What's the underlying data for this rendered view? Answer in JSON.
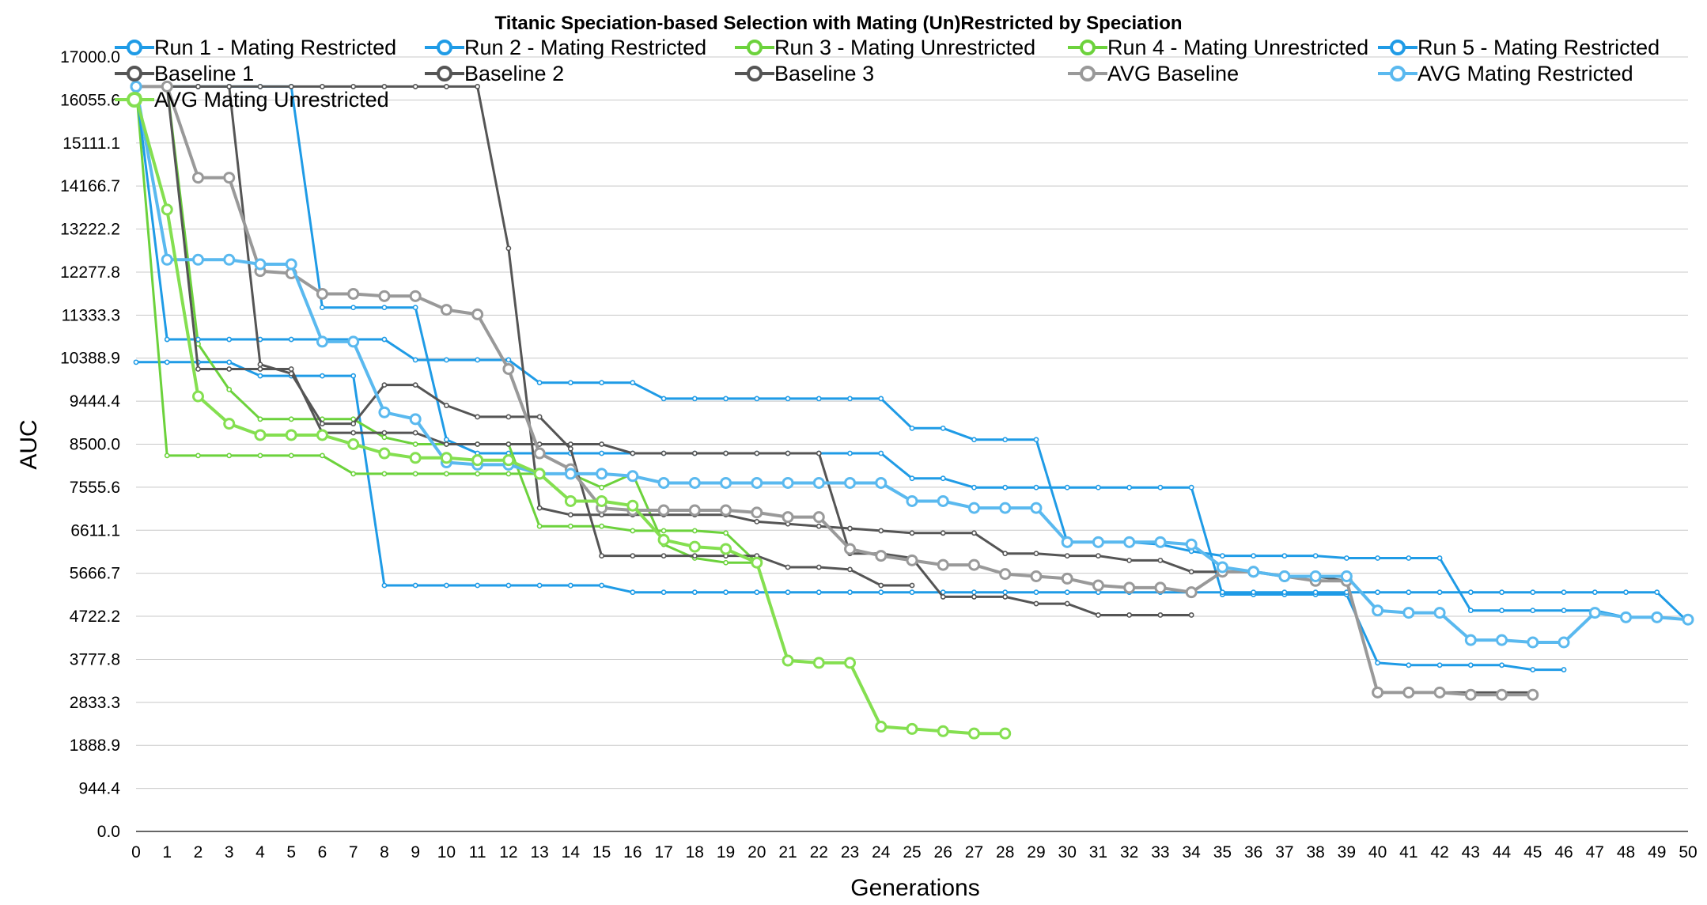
{
  "chart_data": {
    "type": "line",
    "title": "Titanic Speciation-based Selection with Mating (Un)Restricted by Speciation",
    "xlabel": "Generations",
    "ylabel": "AUC",
    "xlim": [
      0,
      50
    ],
    "ylim": [
      0,
      17000
    ],
    "x_ticks": [
      0,
      1,
      2,
      3,
      4,
      5,
      6,
      7,
      8,
      9,
      10,
      11,
      12,
      13,
      14,
      15,
      16,
      17,
      18,
      19,
      20,
      21,
      22,
      23,
      24,
      25,
      26,
      27,
      28,
      29,
      30,
      31,
      32,
      33,
      34,
      35,
      36,
      37,
      38,
      39,
      40,
      41,
      42,
      43,
      44,
      45,
      46,
      47,
      48,
      49,
      50
    ],
    "y_ticks": [
      "0.0",
      "944.4",
      "1888.9",
      "2833.3",
      "3777.8",
      "4722.2",
      "5666.7",
      "6611.1",
      "7555.6",
      "8500.0",
      "9444.4",
      "10388.9",
      "11333.3",
      "12277.8",
      "13222.2",
      "14166.7",
      "15111.1",
      "16055.6",
      "17000.0"
    ],
    "grid": "horizontal",
    "legend_position": "top",
    "series": [
      {
        "name": "Run 1 - Mating Restricted",
        "color": "#1f9be6",
        "width": 3,
        "marker": "small",
        "values": [
          16350,
          16350,
          16350,
          16350,
          16350,
          16350,
          11500,
          11500,
          11500,
          11500,
          8600,
          8300,
          8300,
          8300,
          8300,
          8300,
          8300,
          8300,
          8300,
          8300,
          8300,
          8300,
          8300,
          8300,
          8300,
          7750,
          7750,
          7550,
          7550,
          7550,
          7550,
          7550,
          7550,
          7550,
          7550,
          5200,
          5200,
          5200,
          5200,
          5200,
          3700,
          3650,
          3650,
          3650,
          3650,
          3550,
          3550
        ]
      },
      {
        "name": "Run 2 - Mating Restricted",
        "color": "#1f9be6",
        "width": 3,
        "marker": "small",
        "values": [
          10300,
          10300,
          10300,
          10300,
          10000,
          10000,
          10000,
          10000,
          5400,
          5400,
          5400,
          5400,
          5400,
          5400,
          5400,
          5400,
          5250,
          5250,
          5250,
          5250,
          5250,
          5250,
          5250,
          5250,
          5250,
          5250,
          5250,
          5250,
          5250,
          5250,
          5250,
          5250,
          5250,
          5250,
          5250,
          5250,
          5250,
          5250,
          5250,
          5250,
          5250,
          5250,
          5250,
          5250,
          5250,
          5250,
          5250,
          5250,
          5250,
          5250,
          4600
        ]
      },
      {
        "name": "Run 3 - Mating Unrestricted",
        "color": "#6cd23c",
        "width": 3,
        "marker": "small",
        "values": [
          16350,
          8250,
          8250,
          8250,
          8250,
          8250,
          8250,
          7850,
          7850,
          7850,
          7850,
          7850,
          7850,
          7850,
          7850,
          7550,
          7850,
          6300,
          6000,
          5900,
          5900,
          3750,
          3700,
          3700,
          2300,
          2250,
          2200,
          2150,
          2150
        ]
      },
      {
        "name": "Run 4 - Mating Unrestricted",
        "color": "#6cd23c",
        "width": 3,
        "marker": "small",
        "values": [
          16350,
          16350,
          10700,
          9700,
          9050,
          9050,
          9050,
          9050,
          8650,
          8500,
          8500,
          8500,
          8500,
          6700,
          6700,
          6700,
          6600,
          6600,
          6600,
          6550,
          5900
        ]
      },
      {
        "name": "Run 5 - Mating Restricted",
        "color": "#1f9be6",
        "width": 3,
        "marker": "small",
        "values": [
          16350,
          10800,
          10800,
          10800,
          10800,
          10800,
          10800,
          10800,
          10800,
          10350,
          10350,
          10350,
          10350,
          9850,
          9850,
          9850,
          9850,
          9500,
          9500,
          9500,
          9500,
          9500,
          9500,
          9500,
          9500,
          8850,
          8850,
          8600,
          8600,
          8600,
          6350,
          6350,
          6350,
          6300,
          6150,
          6050,
          6050,
          6050,
          6050,
          6000,
          6000,
          6000,
          6000,
          4850,
          4850,
          4850,
          4850,
          4850,
          4700,
          4700,
          4650
        ]
      },
      {
        "name": "Baseline 1",
        "color": "#555555",
        "width": 3,
        "marker": "small",
        "values": [
          16350,
          16350,
          10150,
          10150,
          10150,
          10150,
          8750,
          8750,
          8750,
          8750,
          8500,
          8500,
          8500,
          8500,
          8500,
          8500,
          8300,
          8300,
          8300,
          8300,
          8300,
          8300,
          8300,
          6100,
          6100,
          6000,
          5150,
          5150,
          5150,
          5000,
          5000,
          4750,
          4750,
          4750,
          4750
        ]
      },
      {
        "name": "Baseline 2",
        "color": "#555555",
        "width": 3,
        "marker": "small",
        "values": [
          16350,
          16350,
          16350,
          16350,
          16350,
          16350,
          16350,
          16350,
          16350,
          16350,
          16350,
          16350,
          12800,
          7100,
          6950,
          6950,
          6950,
          6950,
          6950,
          6950,
          6800,
          6750,
          6700,
          6650,
          6600,
          6550,
          6550,
          6550,
          6100,
          6100,
          6050,
          6050,
          5950,
          5950,
          5700,
          5700,
          5700,
          5600,
          5600,
          5500,
          3050,
          3050,
          3050,
          3050,
          3050,
          3050
        ]
      },
      {
        "name": "Baseline 3",
        "color": "#555555",
        "width": 3,
        "marker": "small",
        "values": [
          16350,
          16350,
          16350,
          16350,
          10250,
          10050,
          8950,
          8950,
          9800,
          9800,
          9350,
          9100,
          9100,
          9100,
          8400,
          6050,
          6050,
          6050,
          6050,
          6050,
          6050,
          5800,
          5800,
          5750,
          5400,
          5400
        ]
      },
      {
        "name": "AVG Baseline",
        "color": "#999999",
        "width": 4,
        "marker": "big",
        "values": [
          16350,
          16350,
          14350,
          14350,
          12300,
          12250,
          11800,
          11800,
          11750,
          11750,
          11450,
          11350,
          10150,
          8300,
          7950,
          7100,
          7050,
          7050,
          7050,
          7050,
          7000,
          6900,
          6900,
          6200,
          6050,
          5950,
          5850,
          5850,
          5650,
          5600,
          5550,
          5400,
          5350,
          5350,
          5250,
          5700,
          5700,
          5600,
          5500,
          5500,
          3050,
          3050,
          3050,
          3000,
          3000,
          3000
        ]
      },
      {
        "name": "AVG Mating Restricted",
        "color": "#5ab9ef",
        "width": 4,
        "marker": "big",
        "values": [
          16350,
          12550,
          12550,
          12550,
          12450,
          12450,
          10750,
          10750,
          9200,
          9050,
          8100,
          8050,
          8050,
          7850,
          7850,
          7850,
          7800,
          7650,
          7650,
          7650,
          7650,
          7650,
          7650,
          7650,
          7650,
          7250,
          7250,
          7100,
          7100,
          7100,
          6350,
          6350,
          6350,
          6350,
          6300,
          5800,
          5700,
          5600,
          5600,
          5600,
          4850,
          4800,
          4800,
          4200,
          4200,
          4150,
          4150,
          4800,
          4700,
          4700,
          4650
        ]
      },
      {
        "name": "AVG Mating Unrestricted",
        "color": "#84df50",
        "width": 4,
        "marker": "big",
        "values": [
          16100,
          13650,
          9550,
          8950,
          8700,
          8700,
          8700,
          8500,
          8300,
          8200,
          8200,
          8150,
          8150,
          7850,
          7250,
          7250,
          7150,
          6400,
          6250,
          6200,
          5900,
          3750,
          3700,
          3700,
          2300,
          2250,
          2200,
          2150,
          2150
        ]
      }
    ]
  }
}
